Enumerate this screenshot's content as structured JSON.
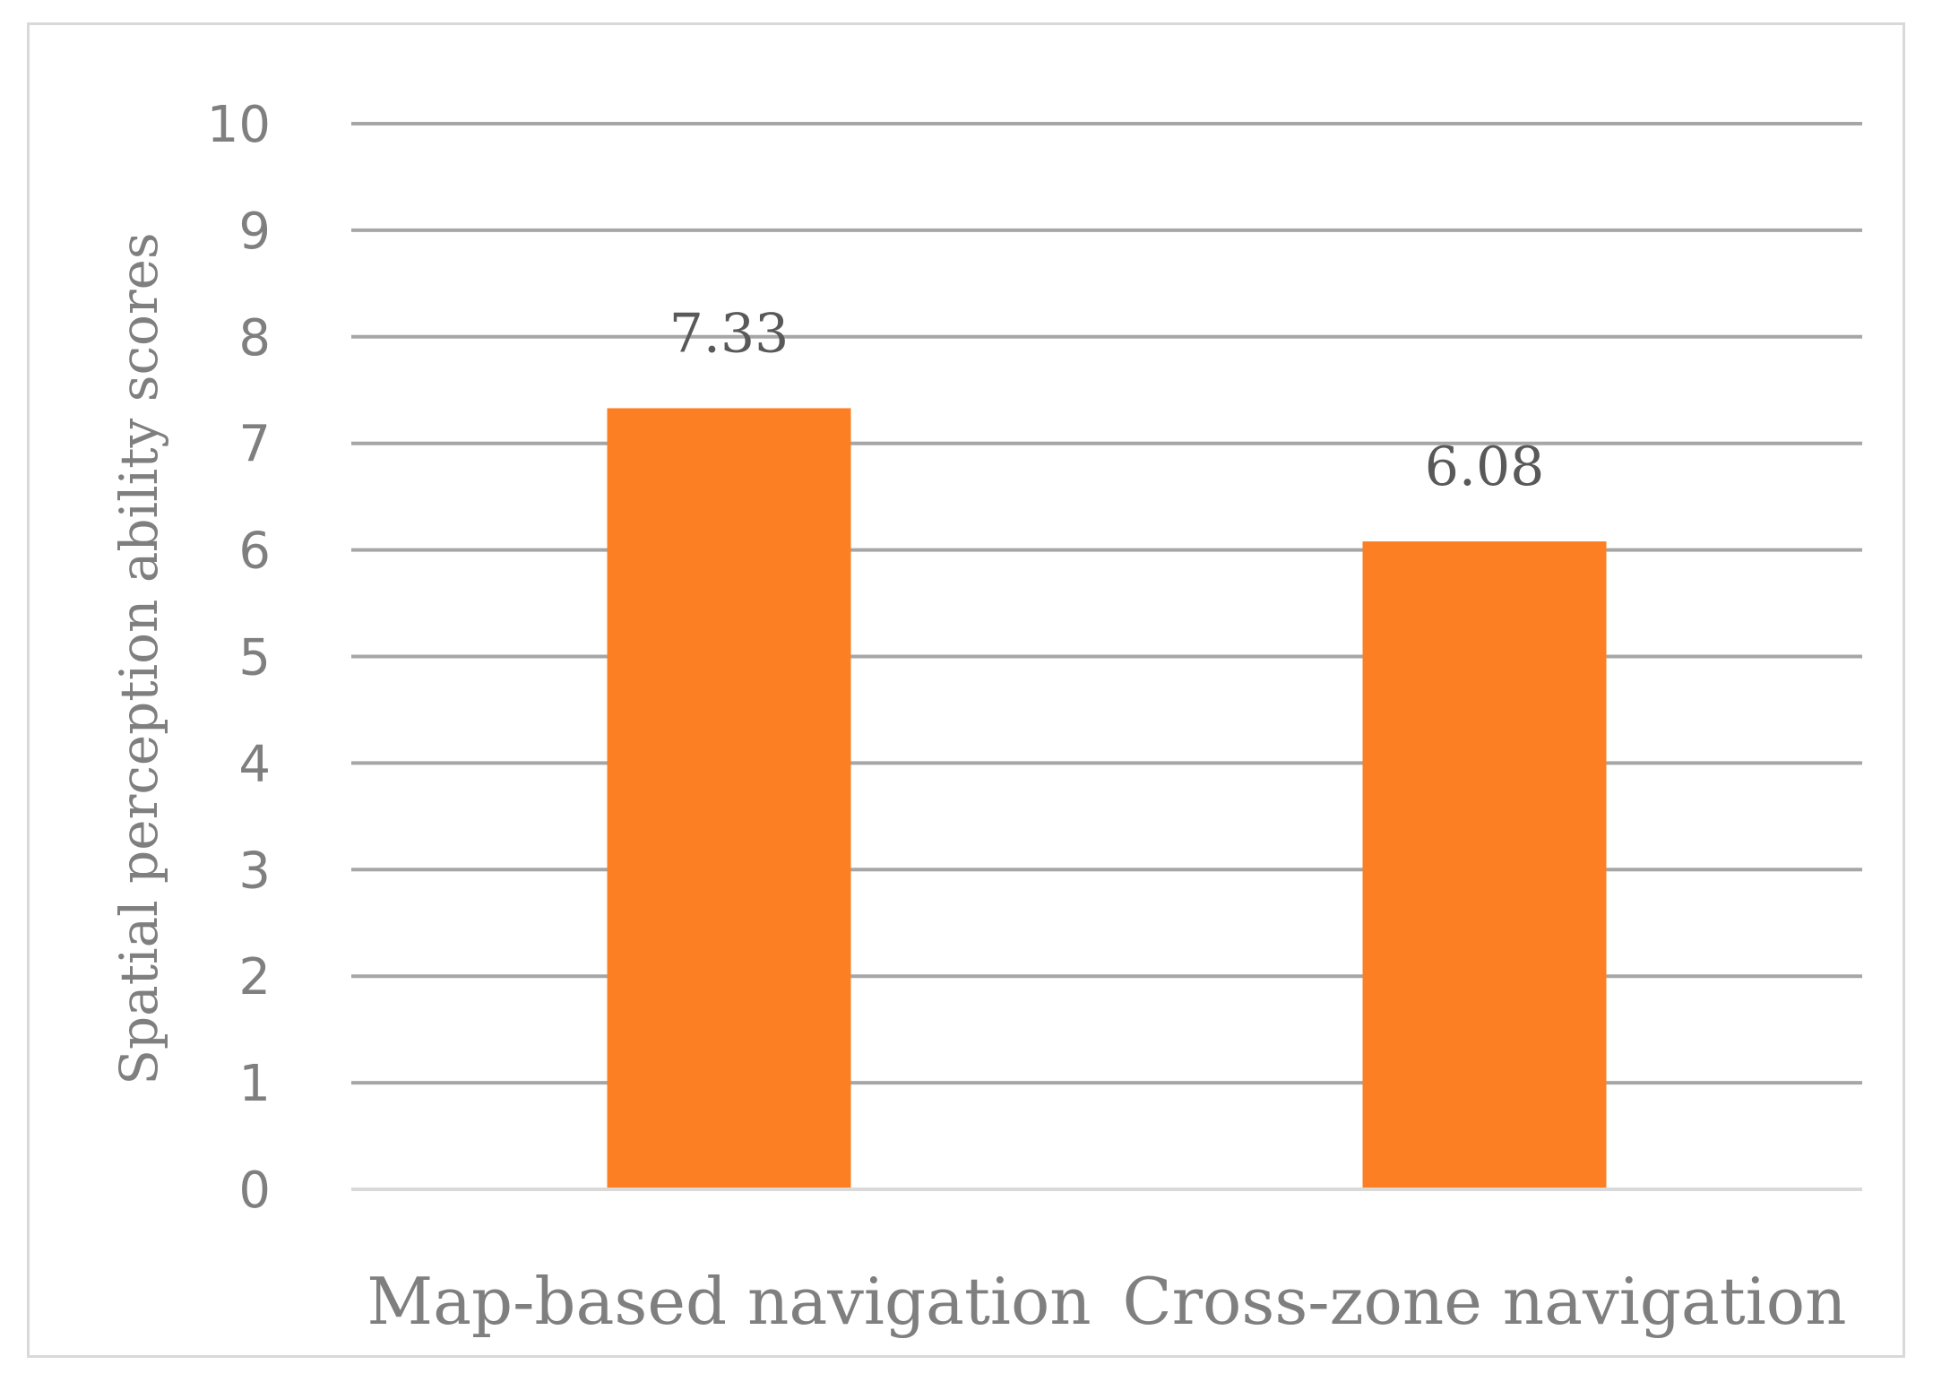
{
  "chart_data": {
    "type": "bar",
    "categories": [
      "Map-based navigation",
      "Cross-zone navigation"
    ],
    "values": [
      7.33,
      6.08
    ],
    "data_labels": [
      "7.33",
      "6.08"
    ],
    "ylabel": "Spatial perception ability scores",
    "ylim": [
      0,
      10
    ],
    "y_ticks": [
      0,
      1,
      2,
      3,
      4,
      5,
      6,
      7,
      8,
      9,
      10
    ],
    "grid": true,
    "legend": "none"
  },
  "colors": {
    "bar": "#fd7f23",
    "grid": "#a6a6a6",
    "text": "#7f7f7f",
    "data_label": "#595959",
    "frame": "#d9d9d9"
  }
}
